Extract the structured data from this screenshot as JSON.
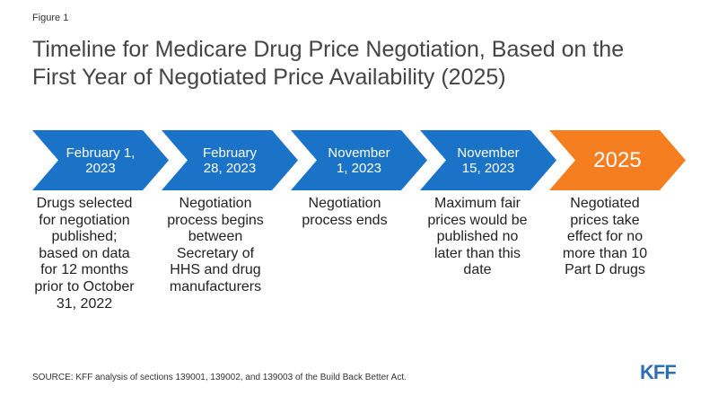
{
  "figure_label": "Figure 1",
  "title": "Timeline for Medicare Drug Price Negotiation, Based on the\nFirst Year of Negotiated Price Availability (2025)",
  "colors": {
    "step": "#1a73c7",
    "final_step": "#f47e20",
    "text_on_step": "#ffffff"
  },
  "timeline": [
    {
      "date": "February 1,\n2023",
      "description": "Drugs selected\nfor negotiation\npublished;\nbased on data\nfor 12 months\nprior to October\n31, 2022"
    },
    {
      "date": "February\n28, 2023",
      "description": "Negotiation\nprocess begins\nbetween\nSecretary of\nHHS and drug\nmanufacturers"
    },
    {
      "date": "November\n1, 2023",
      "description": "Negotiation\nprocess ends"
    },
    {
      "date": "November\n15, 2023",
      "description": "Maximum fair\nprices would be\npublished no\nlater than this\ndate"
    },
    {
      "date": "2025",
      "description": "Negotiated\nprices take\neffect for no\nmore than 10\nPart D drugs"
    }
  ],
  "source": "SOURCE: KFF analysis of sections 139001, 139002, and 139003 of the Build Back Better Act.",
  "logo_text": "KFF"
}
